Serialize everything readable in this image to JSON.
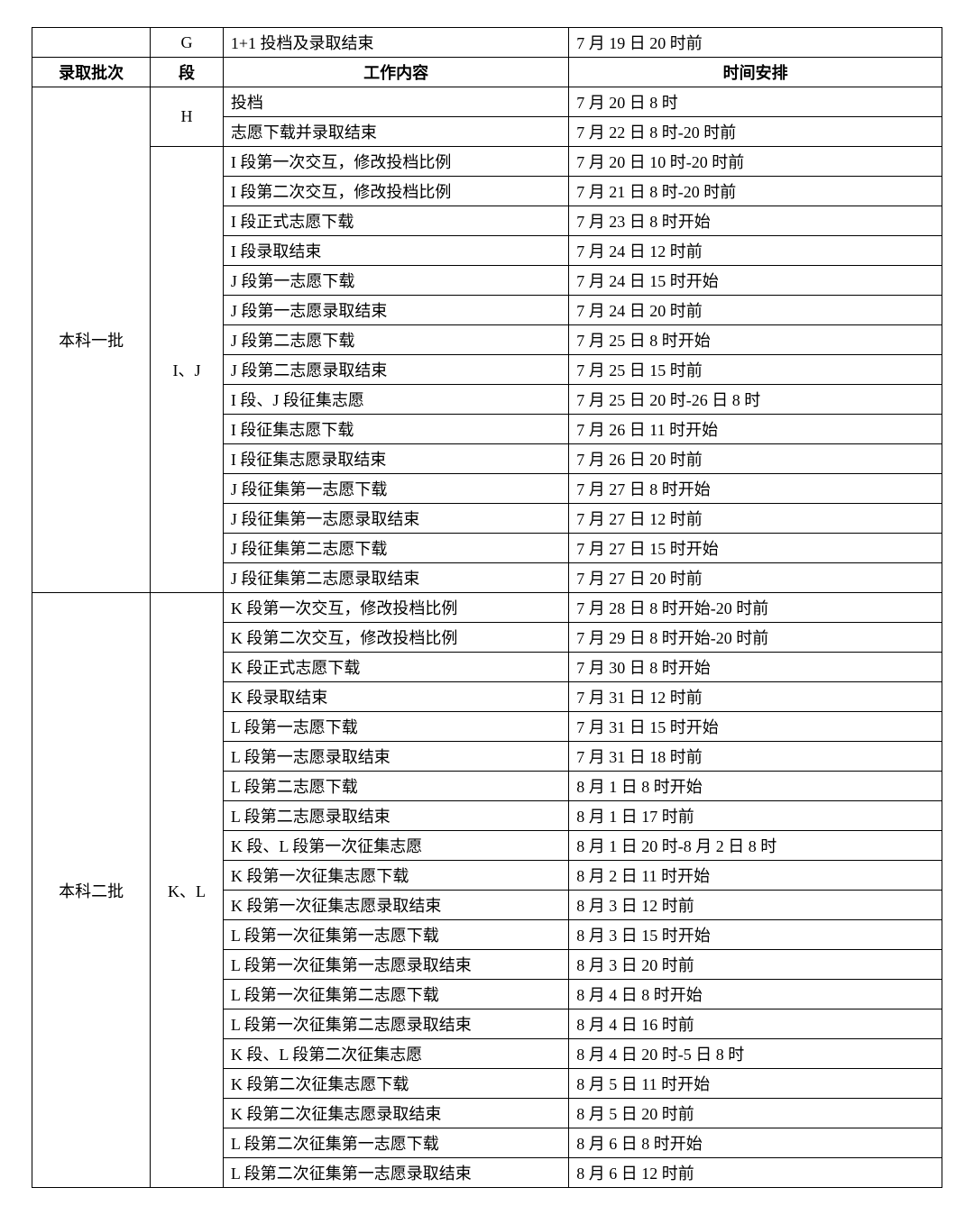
{
  "header": {
    "batch": "录取批次",
    "segment": "段",
    "work": "工作内容",
    "schedule": "时间安排"
  },
  "topRow": {
    "segment": "G",
    "work": "1+1 投档及录取结束",
    "schedule": "7 月 19 日 20 时前"
  },
  "groups": [
    {
      "batch": "本科一批",
      "segGroups": [
        {
          "segment": "H",
          "rows": [
            {
              "work": "投档",
              "schedule": "7 月 20 日 8 时"
            },
            {
              "work": "志愿下载并录取结束",
              "schedule": "7 月 22 日 8 时-20 时前"
            }
          ]
        },
        {
          "segment": "I、J",
          "rows": [
            {
              "work": "I 段第一次交互，修改投档比例",
              "schedule": "7 月 20 日 10 时-20 时前"
            },
            {
              "work": "I 段第二次交互，修改投档比例",
              "schedule": "7 月 21 日 8 时-20 时前"
            },
            {
              "work": "I 段正式志愿下载",
              "schedule": "7 月 23 日 8 时开始"
            },
            {
              "work": "I 段录取结束",
              "schedule": "7 月 24 日 12 时前"
            },
            {
              "work": "J 段第一志愿下载",
              "schedule": "7 月 24 日 15 时开始"
            },
            {
              "work": "J 段第一志愿录取结束",
              "schedule": "7 月 24 日 20 时前"
            },
            {
              "work": "J 段第二志愿下载",
              "schedule": "7 月 25 日 8 时开始"
            },
            {
              "work": "J 段第二志愿录取结束",
              "schedule": "7 月 25 日 15 时前"
            },
            {
              "work": "I 段、J 段征集志愿",
              "schedule": "7 月 25 日 20 时-26 日 8 时"
            },
            {
              "work": "I 段征集志愿下载",
              "schedule": "7 月 26 日 11 时开始"
            },
            {
              "work": "I 段征集志愿录取结束",
              "schedule": "7 月 26 日 20 时前"
            },
            {
              "work": "J 段征集第一志愿下载",
              "schedule": "7 月 27 日 8 时开始"
            },
            {
              "work": "J 段征集第一志愿录取结束",
              "schedule": "7 月 27 日 12 时前"
            },
            {
              "work": "J 段征集第二志愿下载",
              "schedule": "7 月 27 日 15 时开始"
            },
            {
              "work": "J 段征集第二志愿录取结束",
              "schedule": "7 月 27 日 20 时前"
            }
          ]
        }
      ]
    },
    {
      "batch": "本科二批",
      "segGroups": [
        {
          "segment": "K、L",
          "rows": [
            {
              "work": "K 段第一次交互，修改投档比例",
              "schedule": "7 月 28 日 8 时开始-20 时前"
            },
            {
              "work": "K 段第二次交互，修改投档比例",
              "schedule": "7 月 29 日 8 时开始-20 时前"
            },
            {
              "work": "K 段正式志愿下载",
              "schedule": "7 月 30 日 8 时开始"
            },
            {
              "work": "K 段录取结束",
              "schedule": "7 月 31 日 12 时前"
            },
            {
              "work": "L 段第一志愿下载",
              "schedule": "7 月 31 日 15 时开始"
            },
            {
              "work": "L 段第一志愿录取结束",
              "schedule": "7 月 31 日 18 时前"
            },
            {
              "work": "L 段第二志愿下载",
              "schedule": "8 月 1 日 8 时开始"
            },
            {
              "work": "L 段第二志愿录取结束",
              "schedule": "8 月 1 日 17 时前"
            },
            {
              "work": "K 段、L 段第一次征集志愿",
              "schedule": "8 月 1 日 20 时-8 月 2 日 8 时"
            },
            {
              "work": "K 段第一次征集志愿下载",
              "schedule": "8 月 2 日 11 时开始"
            },
            {
              "work": "K 段第一次征集志愿录取结束",
              "schedule": "8 月 3 日 12 时前"
            },
            {
              "work": "L 段第一次征集第一志愿下载",
              "schedule": "8 月 3 日 15 时开始"
            },
            {
              "work": "L 段第一次征集第一志愿录取结束",
              "schedule": "8 月 3 日 20 时前"
            },
            {
              "work": "L 段第一次征集第二志愿下载",
              "schedule": "8 月 4 日 8 时开始"
            },
            {
              "work": "L 段第一次征集第二志愿录取结束",
              "schedule": "8 月 4 日 16 时前"
            },
            {
              "work": "K 段、L 段第二次征集志愿",
              "schedule": "8 月 4 日 20 时-5 日 8 时"
            },
            {
              "work": "K 段第二次征集志愿下载",
              "schedule": "8 月 5 日 11 时开始"
            },
            {
              "work": "K 段第二次征集志愿录取结束",
              "schedule": "8 月 5 日 20 时前"
            },
            {
              "work": "L 段第二次征集第一志愿下载",
              "schedule": "8 月 6 日 8 时开始"
            },
            {
              "work": "L 段第二次征集第一志愿录取结束",
              "schedule": "8 月 6 日 12 时前"
            }
          ]
        }
      ]
    }
  ]
}
